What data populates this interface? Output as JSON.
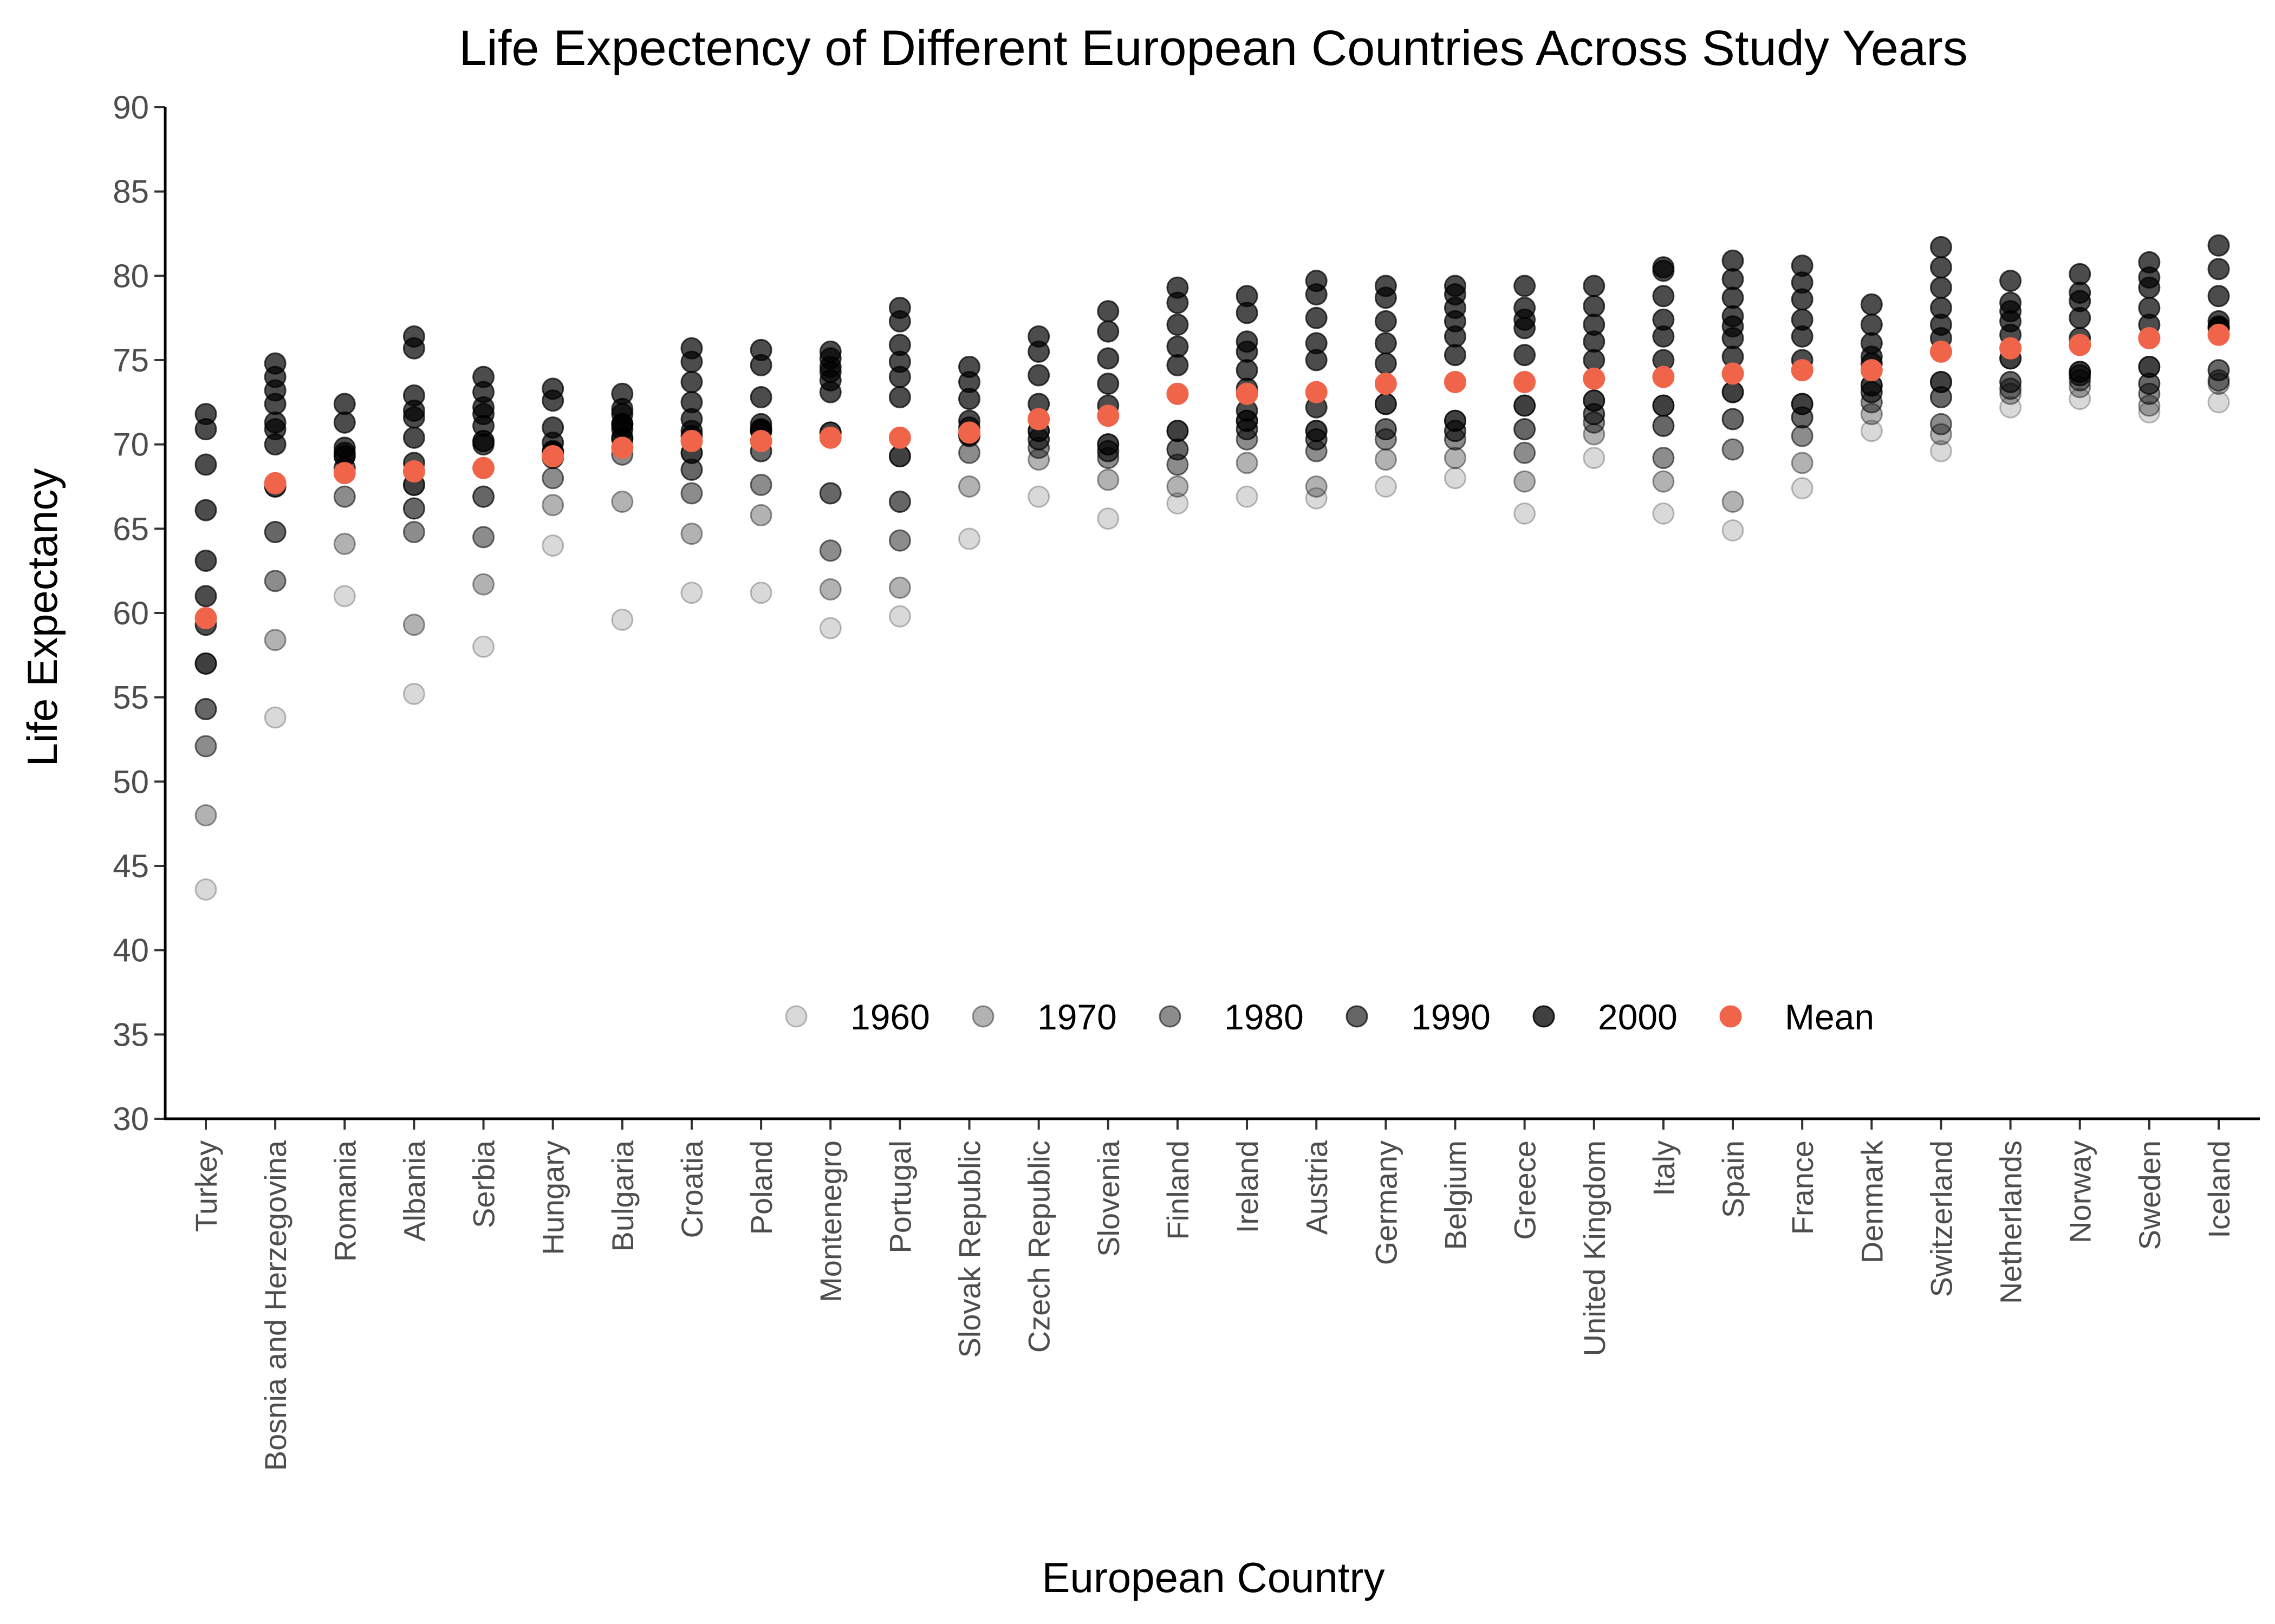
{
  "chart_data": {
    "type": "scatter",
    "title": "Life Expectency of Different European Countries Across Study Years",
    "xlabel": "European Country",
    "ylabel": "Life Expectancy",
    "ylim": [
      30,
      90
    ],
    "yticks": [
      30,
      35,
      40,
      45,
      50,
      55,
      60,
      65,
      70,
      75,
      80,
      85,
      90
    ],
    "grid": false,
    "legend_position": "bottom-center-inside",
    "categories": [
      "Turkey",
      "Bosnia and Herzegovina",
      "Romania",
      "Albania",
      "Serbia",
      "Hungary",
      "Bulgaria",
      "Croatia",
      "Poland",
      "Montenegro",
      "Portugal",
      "Slovak Republic",
      "Czech Republic",
      "Slovenia",
      "Finland",
      "Ireland",
      "Austria",
      "Germany",
      "Belgium",
      "Greece",
      "United Kingdom",
      "Italy",
      "Spain",
      "France",
      "Denmark",
      "Switzerland",
      "Netherlands",
      "Norway",
      "Sweden",
      "Iceland"
    ],
    "series": [
      {
        "name": "1960",
        "color": "#000000",
        "opacity": 0.15,
        "values": [
          43.6,
          53.8,
          61.0,
          55.2,
          58.0,
          64.0,
          59.6,
          61.2,
          61.2,
          59.1,
          59.8,
          64.4,
          66.9,
          65.6,
          66.5,
          66.9,
          66.8,
          67.5,
          68.0,
          65.9,
          69.2,
          65.9,
          64.9,
          67.4,
          70.8,
          69.6,
          72.2,
          72.7,
          71.9,
          72.5
        ]
      },
      {
        "name": "1970",
        "color": "#000000",
        "opacity": 0.3,
        "values": [
          48.0,
          58.4,
          64.1,
          59.3,
          61.7,
          66.4,
          66.6,
          64.7,
          65.8,
          61.4,
          61.5,
          67.5,
          69.1,
          67.9,
          67.5,
          68.9,
          67.5,
          69.1,
          69.2,
          67.8,
          70.6,
          67.8,
          66.6,
          68.9,
          71.8,
          70.6,
          73.0,
          73.4,
          72.3,
          73.6
        ]
      },
      {
        "name": "1980",
        "color": "#000000",
        "opacity": 0.45,
        "values": [
          52.1,
          61.9,
          66.9,
          64.8,
          64.5,
          68.0,
          69.4,
          67.1,
          67.6,
          63.7,
          64.3,
          69.5,
          69.8,
          69.2,
          68.8,
          70.3,
          69.6,
          70.3,
          70.3,
          69.5,
          71.3,
          69.2,
          69.7,
          70.5,
          72.5,
          71.2,
          73.3,
          73.8,
          73.0,
          73.8
        ]
      },
      {
        "name": "1990",
        "color": "#000000",
        "opacity": 0.6,
        "values": [
          54.3,
          64.8,
          68.6,
          66.2,
          66.9,
          69.2,
          70.3,
          68.5,
          69.6,
          67.1,
          66.6,
          70.5,
          70.3,
          69.6,
          69.7,
          70.9,
          70.3,
          70.9,
          70.8,
          70.9,
          71.8,
          71.1,
          71.5,
          71.6,
          73.1,
          72.8,
          73.7,
          74.1,
          73.6,
          74.4
        ]
      },
      {
        "name": "2000",
        "color": "#000000",
        "opacity": 0.75,
        "values": [
          57.0,
          67.5,
          69.3,
          67.6,
          70.2,
          69.5,
          71.2,
          69.5,
          70.8,
          70.7,
          69.3,
          70.6,
          70.8,
          70.0,
          70.8,
          71.4,
          70.8,
          72.4,
          71.4,
          72.3,
          72.6,
          72.3,
          73.1,
          72.4,
          73.5,
          73.7,
          75.1,
          74.3,
          74.6,
          76.9
        ]
      },
      {
        "name": "Mean",
        "color": "#f0644a",
        "opacity": 1.0,
        "values": [
          59.7,
          67.7,
          68.3,
          68.4,
          68.6,
          69.3,
          69.8,
          70.2,
          70.2,
          70.4,
          70.4,
          70.7,
          71.5,
          71.7,
          73.0,
          73.0,
          73.1,
          73.6,
          73.7,
          73.7,
          73.9,
          74.0,
          74.2,
          74.4,
          74.4,
          75.5,
          75.7,
          75.9,
          76.3,
          76.5
        ]
      }
    ],
    "additional_points": {
      "description_note": "",
      "values": [
        [
          59.3,
          61.0,
          63.1,
          66.1,
          68.8,
          70.9,
          71.8
        ],
        [
          70.0,
          70.9,
          71.3,
          72.4,
          73.2,
          74.0,
          74.8
        ],
        [
          69.5,
          69.8,
          71.3,
          72.4
        ],
        [
          68.9,
          70.4,
          71.6,
          72.0,
          72.9,
          75.7,
          76.4
        ],
        [
          70.0,
          71.1,
          71.8,
          72.2,
          73.1,
          74.0
        ],
        [
          69.6,
          70.1,
          71.0,
          72.6,
          73.3
        ],
        [
          70.4,
          70.9,
          71.2,
          71.8,
          72.1,
          73.0
        ],
        [
          70.5,
          70.8,
          71.5,
          72.5,
          73.7,
          74.9,
          75.7
        ],
        [
          70.9,
          71.2,
          72.8,
          74.7,
          75.6
        ],
        [
          73.1,
          73.8,
          74.3,
          74.6,
          75.1,
          75.5
        ],
        [
          72.8,
          74.0,
          74.9,
          75.9,
          77.3,
          78.1
        ],
        [
          71.0,
          71.4,
          72.7,
          73.7,
          74.6
        ],
        [
          72.4,
          74.1,
          75.5,
          76.4
        ],
        [
          72.3,
          73.6,
          75.1,
          76.7,
          77.9
        ],
        [
          74.7,
          75.8,
          77.1,
          78.4,
          79.3
        ],
        [
          72.0,
          73.3,
          74.4,
          75.5,
          76.1,
          77.8,
          78.8
        ],
        [
          72.2,
          75.0,
          76.0,
          77.5,
          78.9,
          79.7
        ],
        [
          74.8,
          76.0,
          77.3,
          78.7,
          79.4
        ],
        [
          75.3,
          76.4,
          77.3,
          78.1,
          78.9,
          79.4
        ],
        [
          75.3,
          76.9,
          77.4,
          78.1,
          79.4
        ],
        [
          75.0,
          76.1,
          77.1,
          78.2,
          79.4
        ],
        [
          75.0,
          76.4,
          77.4,
          78.8,
          80.3,
          80.5
        ],
        [
          75.2,
          76.3,
          77.0,
          77.6,
          78.7,
          79.8,
          80.9
        ],
        [
          75.0,
          76.4,
          77.4,
          78.6,
          79.6,
          80.6
        ],
        [
          74.8,
          75.2,
          76.0,
          77.1,
          78.3
        ],
        [
          76.3,
          77.1,
          78.1,
          79.3,
          80.5,
          81.7
        ],
        [
          76.5,
          77.3,
          77.9,
          78.4,
          79.7
        ],
        [
          76.3,
          77.5,
          78.5,
          79.0,
          80.1
        ],
        [
          77.1,
          78.1,
          79.3,
          79.9,
          80.8
        ],
        [
          77.0,
          77.3,
          78.8,
          80.4,
          81.8
        ]
      ]
    },
    "legend": [
      {
        "label": "1960",
        "color": "#000000",
        "opacity": 0.15
      },
      {
        "label": "1970",
        "color": "#000000",
        "opacity": 0.3
      },
      {
        "label": "1980",
        "color": "#000000",
        "opacity": 0.45
      },
      {
        "label": "1990",
        "color": "#000000",
        "opacity": 0.6
      },
      {
        "label": "2000",
        "color": "#000000",
        "opacity": 0.75
      },
      {
        "label": "Mean",
        "color": "#f0644a",
        "opacity": 1.0
      }
    ]
  }
}
